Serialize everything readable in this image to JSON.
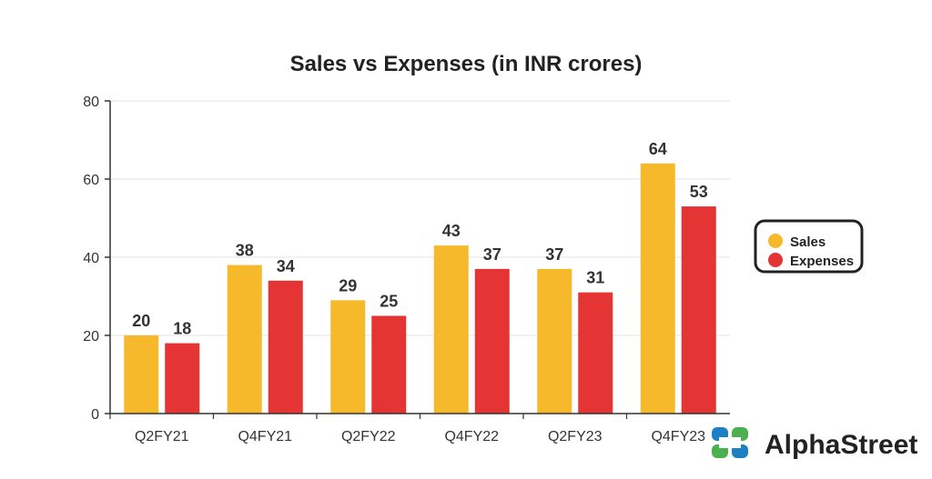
{
  "chart_data": {
    "type": "bar",
    "title": "Sales vs Expenses (in INR crores)",
    "categories": [
      "Q2FY21",
      "Q4FY21",
      "Q2FY22",
      "Q4FY22",
      "Q2FY23",
      "Q4FY23"
    ],
    "series": [
      {
        "name": "Sales",
        "color": "#F6B92B",
        "values": [
          20,
          38,
          29,
          43,
          37,
          64
        ]
      },
      {
        "name": "Expenses",
        "color": "#E43434",
        "values": [
          18,
          34,
          25,
          37,
          31,
          53
        ]
      }
    ],
    "ylim": [
      0,
      80
    ],
    "yticks": [
      0,
      20,
      40,
      60,
      80
    ],
    "xlabel": "",
    "ylabel": "",
    "grid": true,
    "legend_position": "right"
  },
  "brand": {
    "name": "AlphaStreet",
    "icon": "alphastreet-logo-icon",
    "icon_color": "#1D7FC4",
    "icon_accent": "#4CAF50"
  }
}
